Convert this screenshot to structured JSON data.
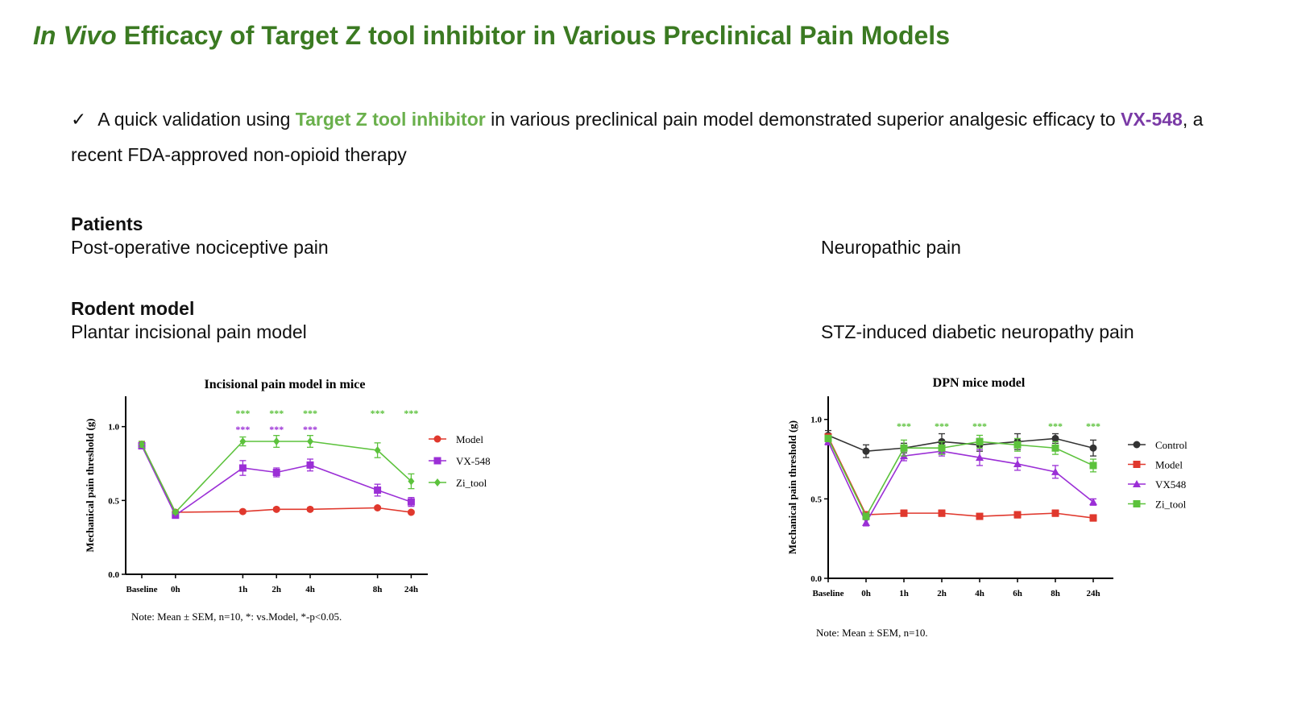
{
  "slide": {
    "title_italic": "In Vivo",
    "title_rest": "Efficacy of Target Z tool inhibitor in Various Preclinical Pain Models",
    "bullet": {
      "check": "✓",
      "text1": "A quick validation using",
      "highlight1": "Target Z tool inhibitor",
      "text2": "in various preclinical pain model demonstrated superior analgesic efficacy to",
      "highlight2": "VX-548",
      "text3": ", a recent FDA-approved non-opioid therapy"
    },
    "patients_heading": "Patients",
    "patients_left": "Post-operative nociceptive pain",
    "patients_right": "Neuropathic pain",
    "rodent_heading": "Rodent model",
    "rodent_left": "Plantar incisional pain model",
    "rodent_right": "STZ-induced diabetic neuropathy pain"
  },
  "chart_data": [
    {
      "type": "line",
      "title": "Incisional pain model in mice",
      "ylabel": "Mechanical pain threshold (g)",
      "xlabel": "",
      "ylim": [
        0,
        1.2
      ],
      "yticks": [
        "0.0",
        "0.5",
        "1.0"
      ],
      "x": [
        "Baseline",
        "0h",
        "1h",
        "2h",
        "4h",
        "8h",
        "24h"
      ],
      "x_pos": [
        0,
        1,
        3,
        4,
        5,
        7,
        8
      ],
      "legend_position": "right",
      "note": "Note: Mean ± SEM, n=10, *: vs.Model, *-p<0.05.",
      "series": [
        {
          "name": "Model",
          "color": "#e0382d",
          "marker": "circle",
          "values": [
            0.88,
            0.42,
            0.425,
            0.44,
            0.44,
            0.45,
            0.42
          ],
          "err": [
            0.02,
            0.01,
            0.01,
            0.01,
            0.01,
            0.01,
            0.01
          ]
        },
        {
          "name": "VX-548",
          "color": "#9b2fd6",
          "marker": "square",
          "values": [
            0.87,
            0.4,
            0.72,
            0.69,
            0.74,
            0.57,
            0.49
          ],
          "err": [
            0.02,
            0.01,
            0.05,
            0.03,
            0.04,
            0.04,
            0.03
          ]
        },
        {
          "name": "Zi_tool",
          "color": "#5cc23c",
          "marker": "diamond",
          "values": [
            0.88,
            0.42,
            0.9,
            0.9,
            0.9,
            0.84,
            0.63
          ],
          "err": [
            0.02,
            0.01,
            0.03,
            0.04,
            0.04,
            0.05,
            0.05
          ]
        }
      ],
      "annotations": [
        {
          "x": "1h",
          "text": "***",
          "color": "#5cc23c",
          "row": 0
        },
        {
          "x": "2h",
          "text": "***",
          "color": "#5cc23c",
          "row": 0
        },
        {
          "x": "4h",
          "text": "***",
          "color": "#5cc23c",
          "row": 0
        },
        {
          "x": "8h",
          "text": "***",
          "color": "#5cc23c",
          "row": 0
        },
        {
          "x": "24h",
          "text": "***",
          "color": "#5cc23c",
          "row": 0
        },
        {
          "x": "1h",
          "text": "***",
          "color": "#9b2fd6",
          "row": 1
        },
        {
          "x": "2h",
          "text": "***",
          "color": "#9b2fd6",
          "row": 1
        },
        {
          "x": "4h",
          "text": "***",
          "color": "#9b2fd6",
          "row": 1
        }
      ]
    },
    {
      "type": "line",
      "title": "DPN mice model",
      "ylabel": "Mechanical pain threshold (g)",
      "xlabel": "",
      "ylim": [
        0,
        1.1
      ],
      "yticks": [
        "0.0",
        "0.5",
        "1.0"
      ],
      "x": [
        "Baseline",
        "0h",
        "1h",
        "2h",
        "4h",
        "6h",
        "8h",
        "24h"
      ],
      "x_pos": [
        0,
        1,
        2,
        3,
        4,
        5,
        6,
        7
      ],
      "legend_position": "right",
      "note": "Note: Mean ± SEM, n=10.",
      "series": [
        {
          "name": "Control",
          "color": "#333333",
          "marker": "circle",
          "values": [
            0.9,
            0.8,
            0.82,
            0.86,
            0.84,
            0.86,
            0.88,
            0.82
          ],
          "err": [
            0.03,
            0.04,
            0.03,
            0.05,
            0.04,
            0.05,
            0.03,
            0.05
          ]
        },
        {
          "name": "Model",
          "color": "#e0382d",
          "marker": "square",
          "values": [
            0.89,
            0.4,
            0.41,
            0.41,
            0.39,
            0.4,
            0.41,
            0.38
          ],
          "err": [
            0.02,
            0.02,
            0.02,
            0.02,
            0.01,
            0.02,
            0.02,
            0.02
          ]
        },
        {
          "name": "VX548",
          "color": "#9b2fd6",
          "marker": "triangle",
          "values": [
            0.86,
            0.35,
            0.77,
            0.8,
            0.76,
            0.72,
            0.67,
            0.48
          ],
          "err": [
            0.02,
            0.02,
            0.03,
            0.03,
            0.05,
            0.04,
            0.04,
            0.02
          ]
        },
        {
          "name": "Zi_tool",
          "color": "#5cc23c",
          "marker": "square",
          "values": [
            0.88,
            0.39,
            0.82,
            0.82,
            0.86,
            0.84,
            0.82,
            0.71
          ],
          "err": [
            0.02,
            0.02,
            0.05,
            0.04,
            0.04,
            0.04,
            0.04,
            0.04
          ]
        }
      ],
      "annotations": [
        {
          "x": "1h",
          "text": "***",
          "color": "#5cc23c",
          "row": 0
        },
        {
          "x": "2h",
          "text": "***",
          "color": "#5cc23c",
          "row": 0
        },
        {
          "x": "4h",
          "text": "***",
          "color": "#5cc23c",
          "row": 0
        },
        {
          "x": "8h",
          "text": "***",
          "color": "#5cc23c",
          "row": 0
        },
        {
          "x": "24h",
          "text": "***",
          "color": "#5cc23c",
          "row": 0
        }
      ]
    }
  ]
}
